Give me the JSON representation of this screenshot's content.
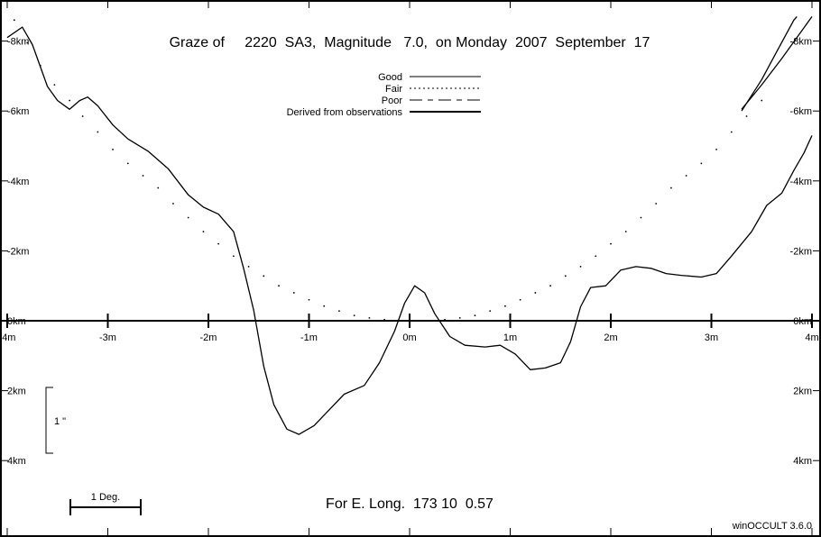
{
  "chart_data": {
    "type": "line",
    "title": "Graze of     2220  SA3,  Magnitude   7.0,  on Monday  2007  September  17",
    "footer": "For E. Long.  173 10  0.57",
    "software": "winOCCULT 3.6.0",
    "legend": {
      "placement": "top-center",
      "entries": [
        {
          "label": "Good",
          "style": "solid"
        },
        {
          "label": "Fair",
          "style": "dotted"
        },
        {
          "label": "Poor",
          "style": "dashed"
        },
        {
          "label": "Derived from observations",
          "style": "thick"
        }
      ]
    },
    "x_axis": {
      "unit": "m",
      "range": [
        -4,
        4
      ],
      "ticks": [
        -4,
        -3,
        -2,
        -1,
        0,
        1,
        2,
        3,
        4
      ],
      "tick_labels": [
        "-4m",
        "-3m",
        "-2m",
        "-1m",
        "0m",
        "1m",
        "2m",
        "3m",
        "4m"
      ]
    },
    "y_axis": {
      "unit": "km",
      "range": [
        -8.5,
        4.3
      ],
      "tick_labels_left": [
        {
          "v": -8,
          "t": "-8km"
        },
        {
          "v": -6,
          "t": "-6km"
        },
        {
          "v": -4,
          "t": "-4km"
        },
        {
          "v": -2,
          "t": "-2km"
        },
        {
          "v": 0,
          "t": "0km"
        },
        {
          "v": 2,
          "t": "2km"
        },
        {
          "v": 4,
          "t": "4km"
        }
      ],
      "tick_labels_right": [
        {
          "v": -8,
          "t": "-8km"
        },
        {
          "v": -6,
          "t": "-6km"
        },
        {
          "v": -4,
          "t": "-4km"
        },
        {
          "v": -2,
          "t": "-2km"
        },
        {
          "v": 0,
          "t": "0km"
        },
        {
          "v": 2,
          "t": "2km"
        },
        {
          "v": 4,
          "t": "4km"
        }
      ]
    },
    "scale_bars": {
      "vertical_label": "1 \"",
      "horizontal_label": "1 Deg."
    },
    "series": [
      {
        "style": "solid",
        "points": [
          [
            -4.0,
            -8.1
          ],
          [
            -3.85,
            -8.4
          ],
          [
            -3.75,
            -7.9
          ],
          [
            -3.6,
            -6.7
          ],
          [
            -3.5,
            -6.3
          ],
          [
            -3.38,
            -6.05
          ],
          [
            -3.28,
            -6.3
          ],
          [
            -3.2,
            -6.4
          ],
          [
            -3.1,
            -6.15
          ],
          [
            -2.95,
            -5.6
          ],
          [
            -2.8,
            -5.2
          ],
          [
            -2.6,
            -4.85
          ],
          [
            -2.4,
            -4.35
          ],
          [
            -2.2,
            -3.6
          ],
          [
            -2.05,
            -3.25
          ],
          [
            -1.9,
            -3.05
          ],
          [
            -1.75,
            -2.55
          ],
          [
            -1.65,
            -1.5
          ],
          [
            -1.55,
            -0.3
          ],
          [
            -1.45,
            1.3
          ],
          [
            -1.35,
            2.4
          ],
          [
            -1.22,
            3.1
          ],
          [
            -1.1,
            3.25
          ],
          [
            -0.95,
            3.0
          ],
          [
            -0.8,
            2.55
          ],
          [
            -0.65,
            2.1
          ],
          [
            -0.45,
            1.85
          ],
          [
            -0.3,
            1.2
          ],
          [
            -0.15,
            0.3
          ],
          [
            -0.05,
            -0.5
          ],
          [
            0.05,
            -1.0
          ],
          [
            0.15,
            -0.8
          ],
          [
            0.25,
            -0.2
          ],
          [
            0.4,
            0.45
          ],
          [
            0.55,
            0.7
          ],
          [
            0.75,
            0.75
          ],
          [
            0.9,
            0.7
          ],
          [
            1.05,
            0.95
          ],
          [
            1.2,
            1.4
          ],
          [
            1.35,
            1.35
          ],
          [
            1.5,
            1.2
          ],
          [
            1.6,
            0.6
          ],
          [
            1.7,
            -0.4
          ],
          [
            1.8,
            -0.95
          ],
          [
            1.95,
            -1.0
          ],
          [
            2.1,
            -1.45
          ],
          [
            2.25,
            -1.55
          ],
          [
            2.4,
            -1.5
          ],
          [
            2.55,
            -1.35
          ],
          [
            2.7,
            -1.3
          ],
          [
            2.9,
            -1.25
          ],
          [
            3.05,
            -1.35
          ],
          [
            3.2,
            -1.85
          ],
          [
            3.4,
            -2.55
          ],
          [
            3.55,
            -3.3
          ],
          [
            3.7,
            -3.65
          ],
          [
            3.82,
            -4.3
          ],
          [
            3.92,
            -4.8
          ],
          [
            4.0,
            -5.3
          ]
        ]
      },
      {
        "style": "dotted",
        "points": [
          [
            -3.93,
            -8.6
          ],
          [
            -3.8,
            -7.95
          ],
          [
            -3.67,
            -7.3
          ],
          [
            -3.53,
            -6.75
          ],
          [
            -3.38,
            -6.3
          ],
          [
            -3.25,
            -5.85
          ],
          [
            -3.1,
            -5.4
          ],
          [
            -2.95,
            -4.9
          ],
          [
            -2.8,
            -4.5
          ],
          [
            -2.65,
            -4.15
          ],
          [
            -2.5,
            -3.8
          ],
          [
            -2.35,
            -3.35
          ],
          [
            -2.2,
            -2.95
          ],
          [
            -2.05,
            -2.55
          ],
          [
            -1.9,
            -2.2
          ],
          [
            -1.75,
            -1.85
          ],
          [
            -1.6,
            -1.55
          ],
          [
            -1.45,
            -1.28
          ],
          [
            -1.3,
            -1.0
          ],
          [
            -1.15,
            -0.8
          ],
          [
            -1.0,
            -0.6
          ],
          [
            -0.85,
            -0.42
          ],
          [
            -0.7,
            -0.28
          ],
          [
            -0.55,
            -0.15
          ],
          [
            -0.4,
            -0.08
          ],
          [
            -0.25,
            -0.03
          ],
          [
            -0.1,
            0.0
          ],
          [
            0.05,
            0.0
          ],
          [
            0.2,
            0.0
          ],
          [
            0.35,
            -0.03
          ],
          [
            0.5,
            -0.08
          ],
          [
            0.65,
            -0.15
          ],
          [
            0.8,
            -0.28
          ],
          [
            0.95,
            -0.42
          ],
          [
            1.1,
            -0.6
          ],
          [
            1.25,
            -0.8
          ],
          [
            1.4,
            -1.0
          ],
          [
            1.55,
            -1.28
          ],
          [
            1.7,
            -1.55
          ],
          [
            1.85,
            -1.85
          ],
          [
            2.0,
            -2.2
          ],
          [
            2.15,
            -2.55
          ],
          [
            2.3,
            -2.95
          ],
          [
            2.45,
            -3.35
          ],
          [
            2.6,
            -3.8
          ],
          [
            2.75,
            -4.15
          ],
          [
            2.9,
            -4.5
          ],
          [
            3.05,
            -4.9
          ],
          [
            3.2,
            -5.4
          ],
          [
            3.35,
            -5.85
          ],
          [
            3.5,
            -6.3
          ]
        ]
      },
      {
        "style": "solid",
        "points": [
          [
            3.3,
            -6.05
          ],
          [
            3.5,
            -6.75
          ],
          [
            3.7,
            -7.5
          ],
          [
            3.9,
            -8.3
          ],
          [
            4.0,
            -8.7
          ]
        ]
      },
      {
        "style": "solid",
        "points": [
          [
            3.3,
            -6.0
          ],
          [
            3.5,
            -6.9
          ],
          [
            3.65,
            -7.7
          ],
          [
            3.82,
            -8.6
          ],
          [
            3.85,
            -8.7
          ]
        ]
      }
    ]
  }
}
